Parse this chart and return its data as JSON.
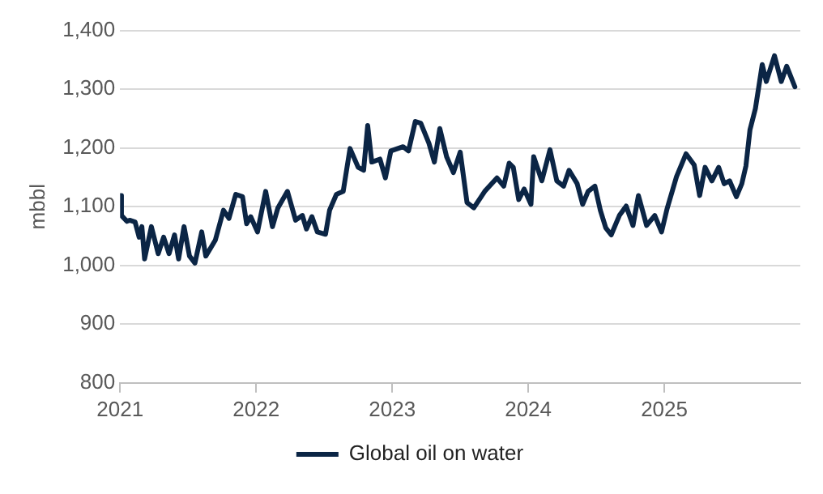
{
  "chart_data": {
    "type": "line",
    "ylabel": "mbbl",
    "xlim": [
      2021,
      2026
    ],
    "xticks": [
      2021,
      2022,
      2023,
      2024,
      2025
    ],
    "ylim": [
      800,
      1400
    ],
    "yticks": [
      {
        "value": 800,
        "label": "800"
      },
      {
        "value": 900,
        "label": "900"
      },
      {
        "value": 1000,
        "label": "1,000"
      },
      {
        "value": 1100,
        "label": "1,100"
      },
      {
        "value": 1200,
        "label": "1,200"
      },
      {
        "value": 1300,
        "label": "1,300"
      },
      {
        "value": 1400,
        "label": "1,400"
      }
    ],
    "grid": "y",
    "legend": "bottom",
    "marker": "none",
    "line_style": "solid",
    "series": [
      {
        "name": "Global oil on water",
        "color": "#0b2545",
        "x": [
          2021.0,
          2021.01,
          2021.05,
          2021.07,
          2021.11,
          2021.14,
          2021.16,
          2021.18,
          2021.23,
          2021.28,
          2021.32,
          2021.36,
          2021.4,
          2021.43,
          2021.47,
          2021.51,
          2021.55,
          2021.6,
          2021.63,
          2021.7,
          2021.76,
          2021.8,
          2021.85,
          2021.9,
          2021.93,
          2021.96,
          2022.01,
          2022.07,
          2022.12,
          2022.16,
          2022.23,
          2022.29,
          2022.34,
          2022.37,
          2022.41,
          2022.45,
          2022.51,
          2022.54,
          2022.59,
          2022.64,
          2022.69,
          2022.75,
          2022.79,
          2022.82,
          2022.85,
          2022.91,
          2022.95,
          2022.99,
          2023.08,
          2023.12,
          2023.17,
          2023.21,
          2023.27,
          2023.31,
          2023.35,
          2023.4,
          2023.45,
          2023.5,
          2023.55,
          2023.6,
          2023.68,
          2023.77,
          2023.82,
          2023.86,
          2023.89,
          2023.93,
          2023.97,
          2024.02,
          2024.04,
          2024.1,
          2024.16,
          2024.21,
          2024.26,
          2024.3,
          2024.36,
          2024.4,
          2024.44,
          2024.49,
          2024.53,
          2024.57,
          2024.61,
          2024.67,
          2024.72,
          2024.77,
          2024.81,
          2024.87,
          2024.93,
          2024.98,
          2025.02,
          2025.09,
          2025.16,
          2025.22,
          2025.26,
          2025.3,
          2025.35,
          2025.4,
          2025.44,
          2025.48,
          2025.53,
          2025.57,
          2025.6,
          2025.63,
          2025.67,
          2025.72,
          2025.75,
          2025.81,
          2025.86,
          2025.9,
          2025.96
        ],
        "values": [
          1119,
          1085,
          1075,
          1077,
          1074,
          1048,
          1066,
          1011,
          1066,
          1020,
          1048,
          1020,
          1052,
          1011,
          1066,
          1016,
          1004,
          1057,
          1016,
          1043,
          1094,
          1080,
          1121,
          1117,
          1071,
          1083,
          1057,
          1126,
          1066,
          1098,
          1126,
          1077,
          1085,
          1062,
          1083,
          1057,
          1053,
          1094,
          1121,
          1126,
          1199,
          1167,
          1162,
          1238,
          1176,
          1181,
          1149,
          1195,
          1202,
          1195,
          1245,
          1242,
          1208,
          1176,
          1233,
          1185,
          1158,
          1193,
          1107,
          1098,
          1126,
          1149,
          1135,
          1174,
          1167,
          1112,
          1130,
          1104,
          1185,
          1144,
          1197,
          1144,
          1135,
          1162,
          1139,
          1104,
          1126,
          1135,
          1094,
          1064,
          1052,
          1085,
          1101,
          1068,
          1119,
          1068,
          1085,
          1057,
          1096,
          1151,
          1190,
          1171,
          1119,
          1167,
          1144,
          1167,
          1139,
          1144,
          1117,
          1139,
          1169,
          1231,
          1267,
          1342,
          1313,
          1357,
          1313,
          1339,
          1304
        ]
      }
    ]
  }
}
